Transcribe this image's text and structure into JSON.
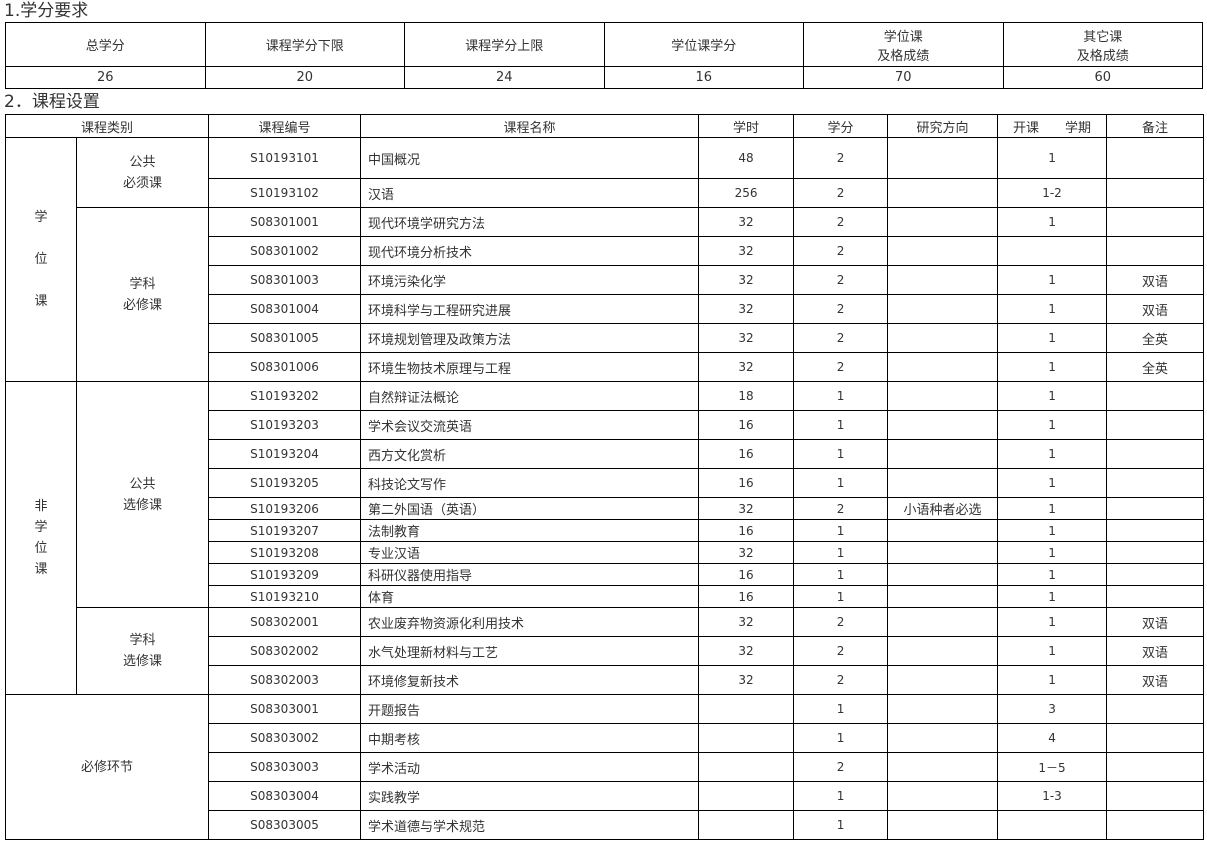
{
  "section1": {
    "title": "1.学分要求",
    "headers": [
      "总学分",
      "课程学分下限",
      "课程学分上限",
      "学位课学分",
      "学位课\n及格成绩",
      "其它课\n及格成绩"
    ],
    "values": [
      "26",
      "20",
      "24",
      "16",
      "70",
      "60"
    ]
  },
  "section2": {
    "title": "2．课程设置",
    "headers": [
      "课程类别",
      "课程编号",
      "课程名称",
      "学时",
      "学分",
      "研究方向",
      "开课　　学期",
      "备注"
    ],
    "groups": [
      {
        "label": "学\n\n位\n\n课",
        "subgroups": [
          {
            "label": "公共\n必须课",
            "rows": [
              {
                "code": "S10193101",
                "name": "中国概况",
                "hours": "48",
                "credits": "2",
                "direction": "",
                "semester": "1",
                "note": ""
              },
              {
                "code": "S10193102",
                "name": "汉语",
                "hours": "256",
                "credits": "2",
                "direction": "",
                "semester": "1-2",
                "note": ""
              }
            ]
          },
          {
            "label": "学科\n必修课",
            "rows": [
              {
                "code": "S08301001",
                "name": "现代环境学研究方法",
                "hours": "32",
                "credits": "2",
                "direction": "",
                "semester": "1",
                "note": ""
              },
              {
                "code": "S08301002",
                "name": "现代环境分析技术",
                "hours": "32",
                "credits": "2",
                "direction": "",
                "semester": "",
                "note": ""
              },
              {
                "code": "S08301003",
                "name": "环境污染化学",
                "hours": "32",
                "credits": "2",
                "direction": "",
                "semester": "1",
                "note": "双语"
              },
              {
                "code": "S08301004",
                "name": "环境科学与工程研究进展",
                "hours": "32",
                "credits": "2",
                "direction": "",
                "semester": "1",
                "note": "双语"
              },
              {
                "code": "S08301005",
                "name": "环境规划管理及政策方法",
                "hours": "32",
                "credits": "2",
                "direction": "",
                "semester": "1",
                "note": "全英"
              },
              {
                "code": "S08301006",
                "name": "环境生物技术原理与工程",
                "hours": "32",
                "credits": "2",
                "direction": "",
                "semester": "1",
                "note": "全英"
              }
            ]
          }
        ]
      },
      {
        "label": "非\n学\n位\n课",
        "subgroups": [
          {
            "label": "公共\n选修课",
            "rows": [
              {
                "code": "S10193202",
                "name": "自然辩证法概论",
                "hours": "18",
                "credits": "1",
                "direction": "",
                "semester": "1",
                "note": ""
              },
              {
                "code": "S10193203",
                "name": "学术会议交流英语",
                "hours": "16",
                "credits": "1",
                "direction": "",
                "semester": "1",
                "note": ""
              },
              {
                "code": "S10193204",
                "name": "西方文化赏析",
                "hours": "16",
                "credits": "1",
                "direction": "",
                "semester": "1",
                "note": ""
              },
              {
                "code": "S10193205",
                "name": "科技论文写作",
                "hours": "16",
                "credits": "1",
                "direction": "",
                "semester": "1",
                "note": ""
              },
              {
                "code": "S10193206",
                "name": "第二外国语（英语）",
                "hours": "32",
                "credits": "2",
                "direction": "小语种者必选",
                "semester": "1",
                "note": ""
              },
              {
                "code": "S10193207",
                "name": "法制教育",
                "hours": "16",
                "credits": "1",
                "direction": "",
                "semester": "1",
                "note": ""
              },
              {
                "code": "S10193208",
                "name": "专业汉语",
                "hours": "32",
                "credits": "1",
                "direction": "",
                "semester": "1",
                "note": ""
              },
              {
                "code": "S10193209",
                "name": "科研仪器使用指导",
                "hours": "16",
                "credits": "1",
                "direction": "",
                "semester": "1",
                "note": ""
              },
              {
                "code": "S10193210",
                "name": "体育",
                "hours": "16",
                "credits": "1",
                "direction": "",
                "semester": "1",
                "note": ""
              }
            ]
          },
          {
            "label": "学科\n选修课",
            "rows": [
              {
                "code": "S08302001",
                "name": "农业废弃物资源化利用技术",
                "hours": "32",
                "credits": "2",
                "direction": "",
                "semester": "1",
                "note": "双语"
              },
              {
                "code": "S08302002",
                "name": "水气处理新材料与工艺",
                "hours": "32",
                "credits": "2",
                "direction": "",
                "semester": "1",
                "note": "双语"
              },
              {
                "code": "S08302003",
                "name": "环境修复新技术",
                "hours": "32",
                "credits": "2",
                "direction": "",
                "semester": "1",
                "note": "双语"
              }
            ]
          }
        ]
      },
      {
        "label": "必修环节",
        "subgroups": [
          {
            "label": "",
            "rows": [
              {
                "code": "S08303001",
                "name": "开题报告",
                "hours": "",
                "credits": "1",
                "direction": "",
                "semester": "3",
                "note": ""
              },
              {
                "code": "S08303002",
                "name": "中期考核",
                "hours": "",
                "credits": "1",
                "direction": "",
                "semester": "4",
                "note": ""
              },
              {
                "code": "S08303003",
                "name": "学术活动",
                "hours": "",
                "credits": "2",
                "direction": "",
                "semester": "1－5",
                "note": ""
              },
              {
                "code": "S08303004",
                "name": "实践教学",
                "hours": "",
                "credits": "1",
                "direction": "",
                "semester": "1-3",
                "note": ""
              },
              {
                "code": "S08303005",
                "name": "学术道德与学术规范",
                "hours": "",
                "credits": "1",
                "direction": "",
                "semester": "",
                "note": ""
              }
            ]
          }
        ]
      }
    ]
  }
}
